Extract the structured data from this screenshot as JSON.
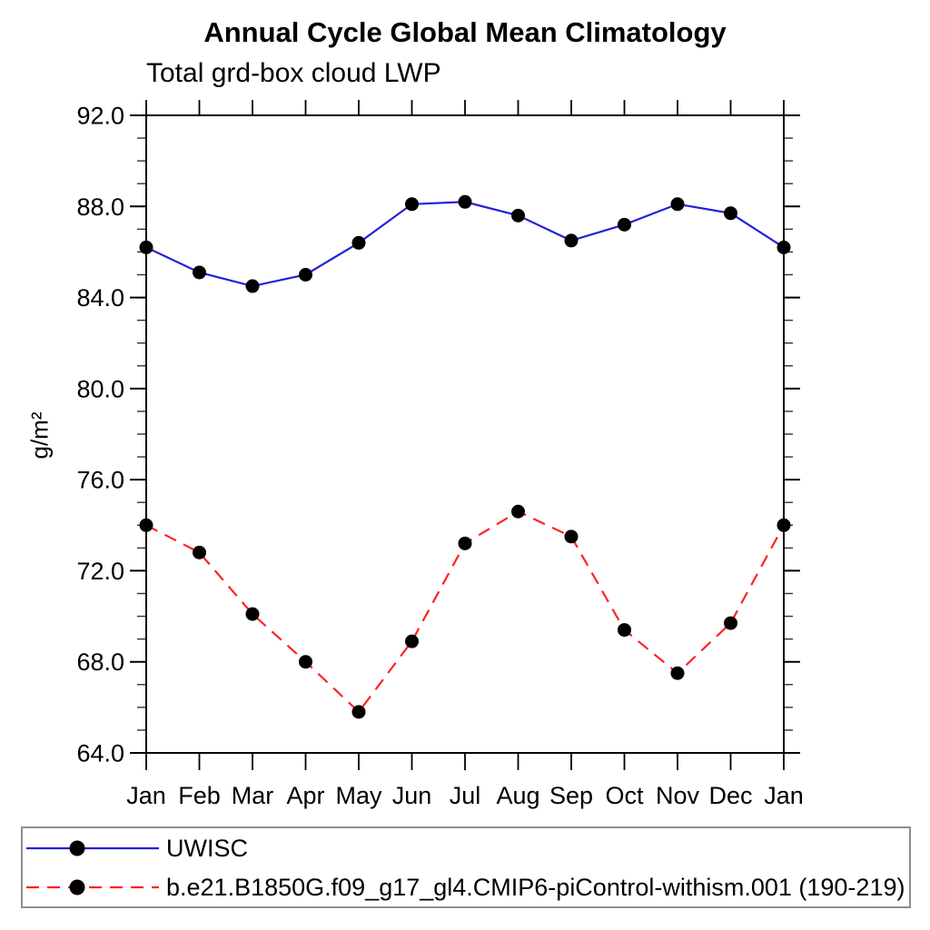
{
  "page": {
    "background": "#ffffff"
  },
  "chart_data": {
    "type": "line",
    "title": "Annual Cycle Global Mean Climatology",
    "subtitle": "Total grd-box cloud LWP",
    "xlabel": "",
    "ylabel": "g/m²",
    "categories": [
      "Jan",
      "Feb",
      "Mar",
      "Apr",
      "May",
      "Jun",
      "Jul",
      "Aug",
      "Sep",
      "Oct",
      "Nov",
      "Dec",
      "Jan"
    ],
    "series": [
      {
        "name": "UWISC",
        "color": "#2222d8",
        "line_style": "solid",
        "marker": "black-filled-circle",
        "values": [
          86.2,
          85.1,
          84.5,
          85.0,
          86.4,
          88.1,
          88.2,
          87.6,
          86.5,
          87.2,
          88.1,
          87.7,
          86.2
        ]
      },
      {
        "name": "b.e21.B1850G.f09_g17_gl4.CMIP6-piControl-withism.001 (190-219)",
        "color": "#ff2222",
        "line_style": "dashed",
        "marker": "black-filled-circle",
        "values": [
          74.0,
          72.8,
          70.1,
          68.0,
          65.8,
          68.9,
          73.2,
          74.6,
          73.5,
          69.4,
          67.5,
          69.7,
          74.0
        ]
      }
    ],
    "ylim": [
      64.0,
      92.0
    ],
    "yticks": [
      64.0,
      68.0,
      72.0,
      76.0,
      80.0,
      84.0,
      88.0,
      92.0
    ],
    "ytick_label_format": "one-decimal",
    "y_minor_step": 1,
    "grid": false,
    "legend_position": "bottom",
    "marker_color": "#000000",
    "axis_color": "#000000"
  }
}
